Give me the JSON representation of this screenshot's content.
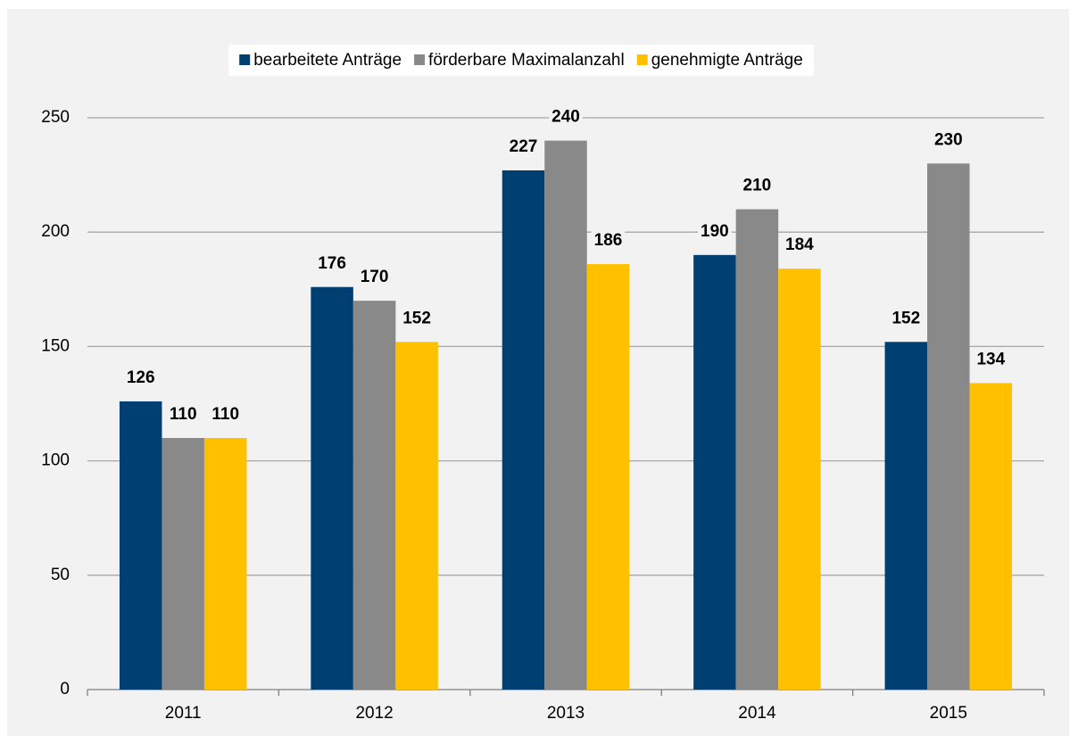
{
  "chart_data": {
    "type": "bar",
    "categories": [
      "2011",
      "2012",
      "2013",
      "2014",
      "2015"
    ],
    "series": [
      {
        "name": "bearbeitete Anträge",
        "color": "#003f72",
        "values": [
          126,
          176,
          227,
          190,
          152
        ]
      },
      {
        "name": "förderbare Maximalanzahl",
        "color": "#898989",
        "values": [
          110,
          170,
          240,
          210,
          230
        ]
      },
      {
        "name": "genehmigte Anträge",
        "color": "#ffc000",
        "values": [
          110,
          152,
          186,
          184,
          134
        ]
      }
    ],
    "ylim": [
      0,
      250
    ],
    "yticks": [
      0,
      50,
      100,
      150,
      200,
      250
    ],
    "grid": true,
    "legend": "top"
  }
}
